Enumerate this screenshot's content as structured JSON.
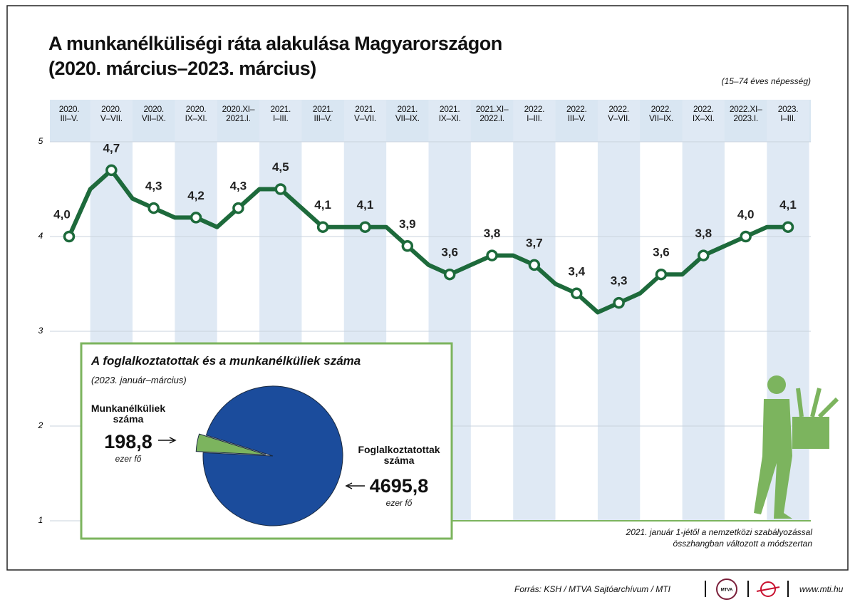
{
  "chart_data": [
    {
      "type": "line",
      "title": "A munkanélküliségi ráta alakulása Magyarországon\n(2020. március–2023. március)",
      "note": "(15–74 éves népesség)",
      "footnote": "2021. január 1-jétől a nemzetközi szabályozással\nösszhangban változott a módszertan",
      "categories": [
        "2020.\nIII–V.",
        null,
        "2020.\nV–VII.",
        null,
        "2020.\nVII–IX.",
        null,
        "2020.\nIX–XI.",
        null,
        "2020.XI–\n2021.I.",
        null,
        "2021.\nI–III.",
        null,
        "2021.\nIII–V.",
        null,
        "2021.\nV–VII.",
        null,
        "2021.\nVII–IX.",
        null,
        "2021.\nIX–XI.",
        null,
        "2021.XI–\n2022.I.",
        null,
        "2022.\nI–III.",
        null,
        "2022.\nIII–V.",
        null,
        "2022.\nV–VII.",
        null,
        "2022.\nVII–IX.",
        null,
        "2022.\nIX–XI.",
        null,
        "2022.XI–\n2023.I.",
        null,
        "2023.\nI–III."
      ],
      "series": [
        {
          "color": "#1d6a3b",
          "values": [
            4.0,
            4.5,
            4.7,
            4.4,
            4.3,
            4.2,
            4.2,
            4.1,
            4.3,
            4.5,
            4.5,
            4.3,
            4.1,
            4.1,
            4.1,
            4.1,
            3.9,
            3.7,
            3.6,
            3.7,
            3.8,
            3.8,
            3.7,
            3.5,
            3.4,
            3.2,
            3.3,
            3.4,
            3.6,
            3.6,
            3.8,
            3.9,
            4.0,
            4.1,
            4.1
          ],
          "value_labels": [
            "4,0",
            null,
            "4,7",
            null,
            "4,3",
            null,
            "4,2",
            null,
            "4,3",
            null,
            "4,5",
            null,
            "4,1",
            null,
            "4,1",
            null,
            "3,9",
            null,
            "3,6",
            null,
            "3,8",
            null,
            "3,7",
            null,
            "3,4",
            null,
            "3,3",
            null,
            "3,6",
            null,
            "3,8",
            null,
            "4,0",
            null,
            "4,1"
          ]
        }
      ],
      "ylim": [
        1,
        5
      ],
      "yticks": [
        1,
        2,
        3,
        4,
        5
      ],
      "grid": true
    },
    {
      "type": "pie",
      "title": "A foglalkoztatottak és a munkanélküliek száma",
      "subtitle": "(2023. január–március)",
      "categories": [
        "Munkanélküliek\nszáma",
        "Foglalkoztatottak\nszáma"
      ],
      "values": [
        198.8,
        4695.8
      ],
      "value_labels": [
        "198,8",
        "4695,8"
      ],
      "unit": "ezer fő",
      "colors": [
        "#7cb45e",
        "#1b4c9c"
      ]
    }
  ],
  "source": "Forrás: KSH / MTVA Sajtóarchívum / MTI",
  "logo": "MTVA",
  "url": "www.mti.hu"
}
